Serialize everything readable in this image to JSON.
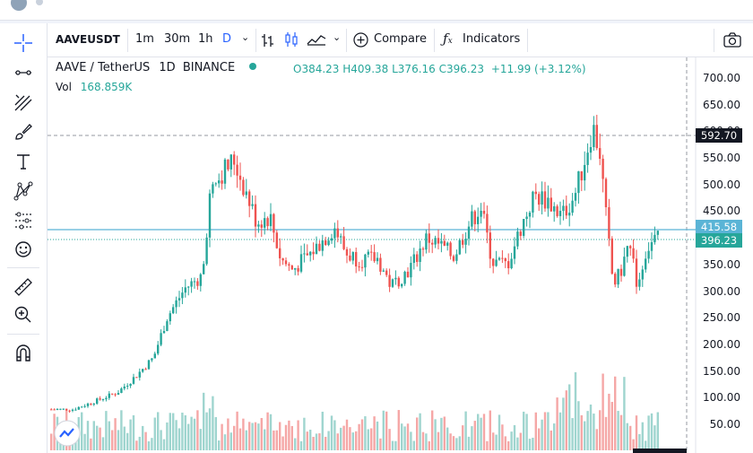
{
  "toolbar": {
    "symbol": "AAVEUSDT",
    "intervals": [
      "1m",
      "30m",
      "1h",
      "D"
    ],
    "compare_label": "Compare",
    "indicators_label": "Indicators"
  },
  "legend": {
    "pair": "AAVE / TetherUS",
    "interval": "1D",
    "exchange": "BINANCE",
    "open": "O384.23",
    "high": "H409.38",
    "low": "L376.16",
    "close": "C396.23",
    "change": "+11.99 (+3.12%)",
    "vol_label": "Vol",
    "vol_value": "168.859K"
  },
  "price_axis": [
    "700.00",
    "650.00",
    "600.00",
    "550.00",
    "500.00",
    "450.00",
    "400.00",
    "350.00",
    "300.00",
    "250.00",
    "200.00",
    "150.00",
    "100.00",
    "50.00"
  ],
  "tags": {
    "crosshair_price": "592.70",
    "line_price": "415.58",
    "last_price": "396.23"
  },
  "colors": {
    "up": "#26a69a",
    "down": "#ef5350",
    "vol_up": "#9fd5cf",
    "vol_down": "#f5a7a6",
    "accent": "#2962ff",
    "line": "#5ab4d6"
  },
  "icons": [
    "crosshair-icon",
    "trendline-icon",
    "fib-icon",
    "brush-icon",
    "text-icon",
    "pattern-icon",
    "forecast-icon",
    "emoji-icon",
    "ruler-icon",
    "zoom-in-icon",
    "magnet-icon",
    "camera-icon"
  ]
}
